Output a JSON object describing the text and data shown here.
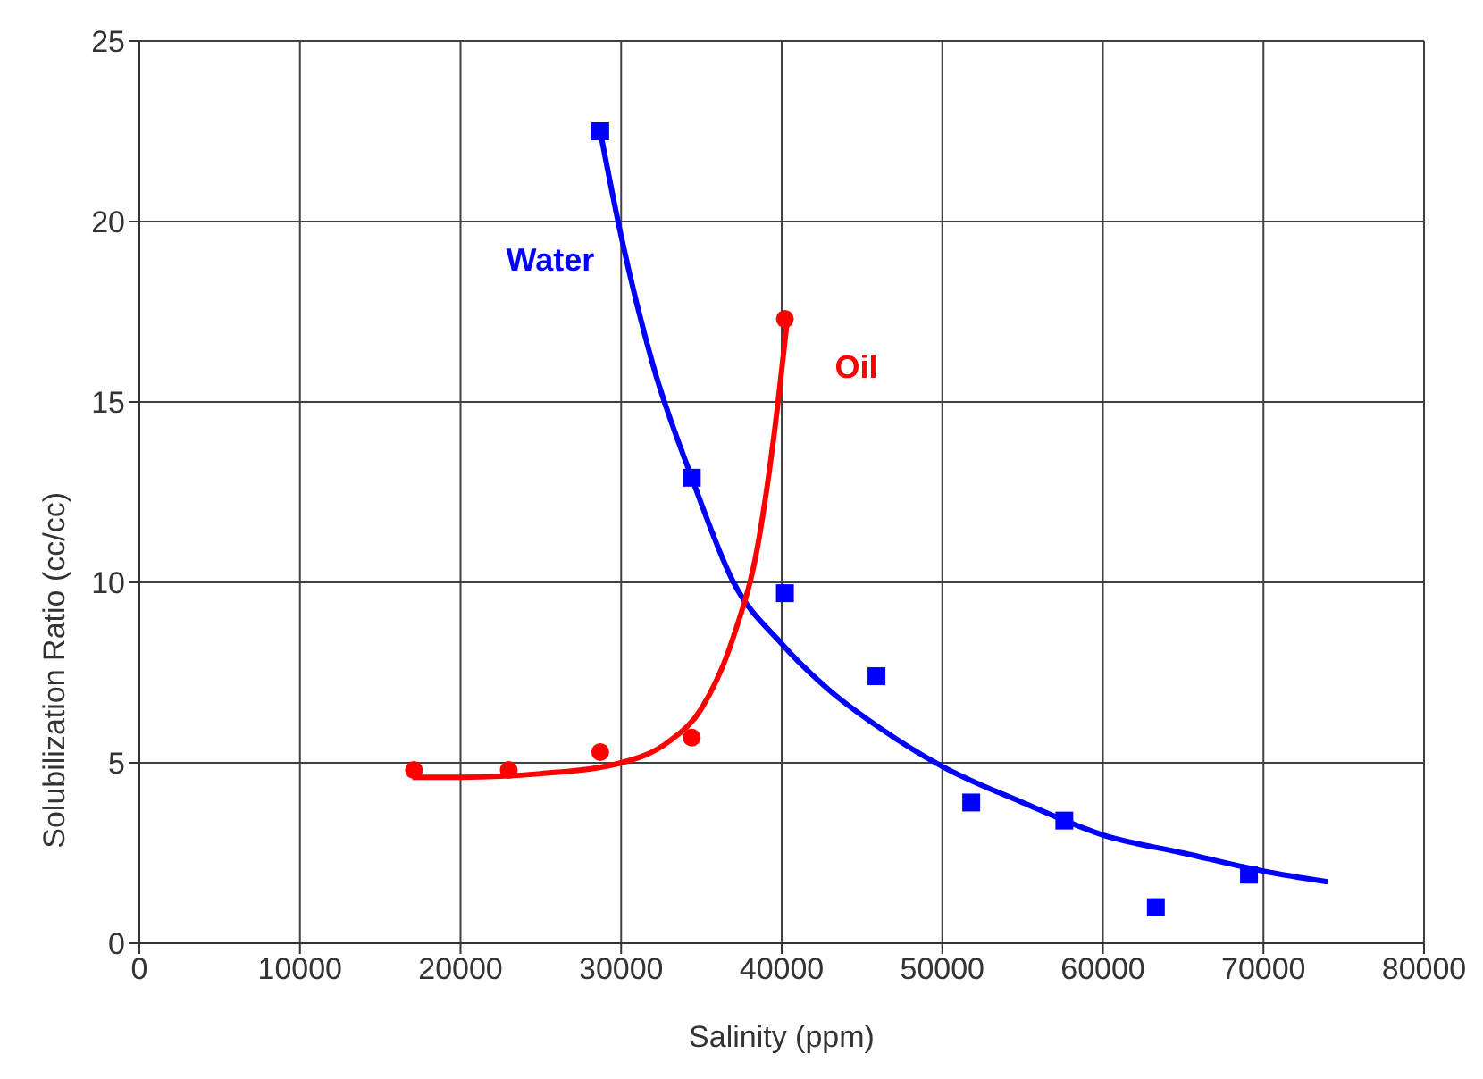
{
  "chart_data": {
    "type": "scatter",
    "xlabel": "Salinity (ppm)",
    "ylabel": "Solubilization Ratio (cc/cc)",
    "xlim": [
      0,
      80000
    ],
    "xticks": [
      0,
      10000,
      20000,
      30000,
      40000,
      50000,
      60000,
      70000,
      80000
    ],
    "ylim": [
      0,
      25
    ],
    "yticks": [
      0,
      5,
      10,
      15,
      20,
      25
    ],
    "grid": true,
    "series": [
      {
        "name": "Water",
        "marker": "square",
        "color": "#0000ff",
        "x": [
          28700,
          34400,
          40200,
          45900,
          51800,
          57600,
          63300,
          69100
        ],
        "values": [
          22.5,
          12.9,
          9.7,
          7.4,
          3.9,
          3.4,
          1.0,
          1.9
        ]
      },
      {
        "type": "line",
        "marker": "none",
        "line_style": "solid",
        "color": "#0000ff",
        "x": [
          28700,
          30000,
          32000,
          34400,
          37000,
          40000,
          43000,
          46000,
          50000,
          55000,
          60000,
          65000,
          70000,
          74000
        ],
        "values": [
          22.5,
          19.6,
          16.0,
          12.9,
          10.0,
          8.3,
          7.0,
          6.0,
          4.9,
          3.9,
          3.0,
          2.5,
          2.0,
          1.7
        ]
      },
      {
        "name": "Oil",
        "marker": "circle",
        "color": "#ff0000",
        "x": [
          17100,
          23000,
          28700,
          34400,
          40200
        ],
        "values": [
          4.8,
          4.8,
          5.3,
          5.7,
          17.3
        ]
      },
      {
        "type": "line",
        "marker": "none",
        "line_style": "solid",
        "color": "#ff0000",
        "x": [
          17000,
          20000,
          25000,
          30000,
          33000,
          35000,
          37000,
          38500,
          39500,
          40400
        ],
        "values": [
          4.6,
          4.6,
          4.7,
          5.0,
          5.6,
          6.5,
          8.5,
          11.0,
          14.0,
          17.5
        ]
      }
    ]
  }
}
